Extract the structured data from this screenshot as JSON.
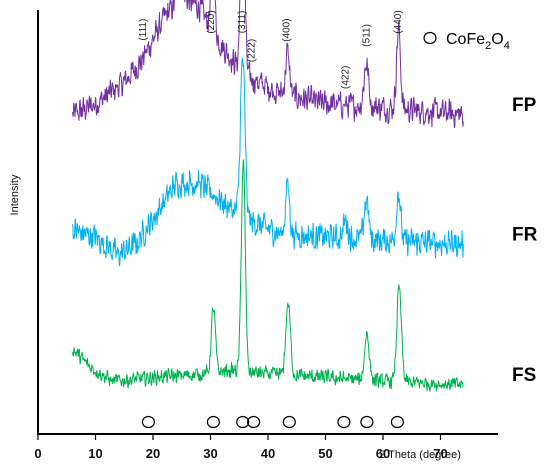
{
  "chart_data": {
    "type": "line",
    "title": "",
    "xlabel": "2 Theta (degree)",
    "ylabel": "Intensity",
    "xlim": [
      0,
      80
    ],
    "x_ticks": [
      0,
      10,
      20,
      30,
      40,
      50,
      60,
      70
    ],
    "y_ticks": false,
    "grid": false,
    "legend": {
      "marker": "open-circle",
      "label": "CoFe",
      "sub1": "2",
      "mid": "O",
      "sub2": "4",
      "placement": "top-right"
    },
    "x_range": [
      6,
      74
    ],
    "peak_labels": [
      {
        "hkl": "(111)",
        "x": 18.3
      },
      {
        "hkl": "(220)",
        "x": 30.1
      },
      {
        "hkl": "(311)",
        "x": 35.5
      },
      {
        "hkl": "(222)",
        "x": 37.1
      },
      {
        "hkl": "(400)",
        "x": 43.2
      },
      {
        "hkl": "(422)",
        "x": 53.5
      },
      {
        "hkl": "(511)",
        "x": 57.1
      },
      {
        "hkl": "(440)",
        "x": 62.6
      }
    ],
    "reference_peaks": [
      19.2,
      30.5,
      35.6,
      37.5,
      43.7,
      53.2,
      57.2,
      62.5
    ],
    "series": [
      {
        "name": "FP",
        "color": "#7030a0",
        "offset": 0.74,
        "noise": 0.09,
        "background": [
          [
            6,
            0.03
          ],
          [
            10,
            0.06
          ],
          [
            15,
            0.12
          ],
          [
            18,
            0.18
          ],
          [
            22,
            0.3
          ],
          [
            25,
            0.36
          ],
          [
            28,
            0.33
          ],
          [
            32,
            0.22
          ],
          [
            36,
            0.14
          ],
          [
            42,
            0.09
          ],
          [
            50,
            0.06
          ],
          [
            60,
            0.05
          ],
          [
            74,
            0.03
          ]
        ],
        "peaks": [
          {
            "x": 24.6,
            "h": 0.14,
            "w": 0.35
          },
          {
            "x": 30.4,
            "h": 0.24,
            "w": 0.3
          },
          {
            "x": 35.6,
            "h": 0.52,
            "w": 0.35
          },
          {
            "x": 43.4,
            "h": 0.12,
            "w": 0.35
          },
          {
            "x": 57.1,
            "h": 0.12,
            "w": 0.4
          },
          {
            "x": 62.7,
            "h": 0.22,
            "w": 0.35
          }
        ]
      },
      {
        "name": "FR",
        "color": "#00b0f0",
        "offset": 0.38,
        "noise": 0.09,
        "background": [
          [
            6,
            0.07
          ],
          [
            10,
            0.05
          ],
          [
            14,
            0.0
          ],
          [
            17,
            0.03
          ],
          [
            20,
            0.1
          ],
          [
            24,
            0.2
          ],
          [
            28,
            0.2
          ],
          [
            32,
            0.15
          ],
          [
            36,
            0.1
          ],
          [
            42,
            0.06
          ],
          [
            50,
            0.05
          ],
          [
            60,
            0.04
          ],
          [
            74,
            0.03
          ]
        ],
        "peaks": [
          {
            "x": 35.6,
            "h": 0.44,
            "w": 0.4
          },
          {
            "x": 43.4,
            "h": 0.14,
            "w": 0.35
          },
          {
            "x": 53.5,
            "h": 0.05,
            "w": 0.4
          },
          {
            "x": 57.1,
            "h": 0.11,
            "w": 0.4
          },
          {
            "x": 62.7,
            "h": 0.14,
            "w": 0.35
          }
        ]
      },
      {
        "name": "FS",
        "color": "#00b050",
        "offset": 0.0,
        "noise": 0.05,
        "background": [
          [
            6,
            0.12
          ],
          [
            9,
            0.07
          ],
          [
            13,
            0.03
          ],
          [
            20,
            0.04
          ],
          [
            28,
            0.05
          ],
          [
            34,
            0.06
          ],
          [
            40,
            0.05
          ],
          [
            50,
            0.04
          ],
          [
            60,
            0.03
          ],
          [
            74,
            0.02
          ]
        ],
        "peaks": [
          {
            "x": 30.5,
            "h": 0.18,
            "w": 0.35
          },
          {
            "x": 35.7,
            "h": 0.58,
            "w": 0.35
          },
          {
            "x": 43.5,
            "h": 0.2,
            "w": 0.4
          },
          {
            "x": 57.2,
            "h": 0.13,
            "w": 0.4
          },
          {
            "x": 62.8,
            "h": 0.26,
            "w": 0.4
          }
        ]
      }
    ]
  }
}
